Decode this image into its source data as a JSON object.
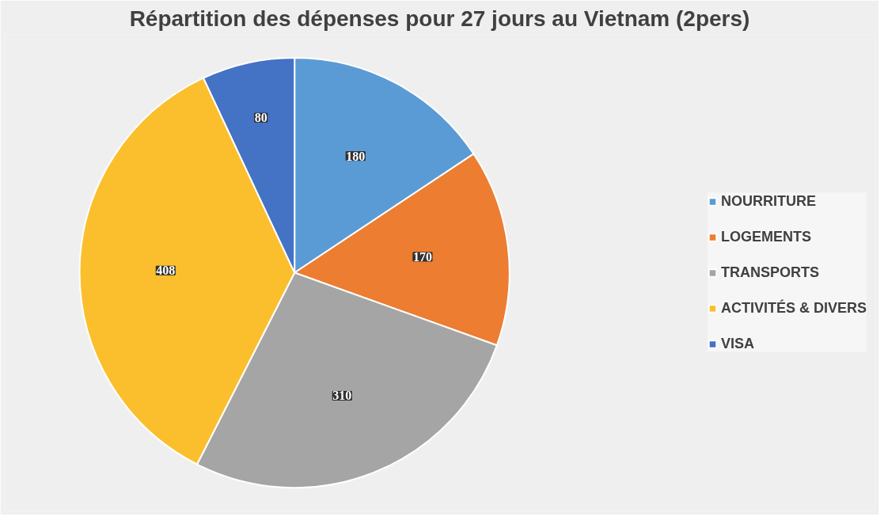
{
  "chart_data": {
    "type": "pie",
    "title": "Répartition des dépenses pour 27 jours au Vietnam (2pers)",
    "categories": [
      "NOURRITURE",
      "LOGEMENTS",
      "TRANSPORTS",
      "ACTIVITÉS & DIVERS",
      "VISA"
    ],
    "values": [
      180,
      170,
      310,
      408,
      80
    ],
    "colors": [
      "#5b9bd5",
      "#ed7d31",
      "#a5a5a5",
      "#fbbf2d",
      "#4472c4"
    ],
    "data_labels": true,
    "legend": "right"
  }
}
